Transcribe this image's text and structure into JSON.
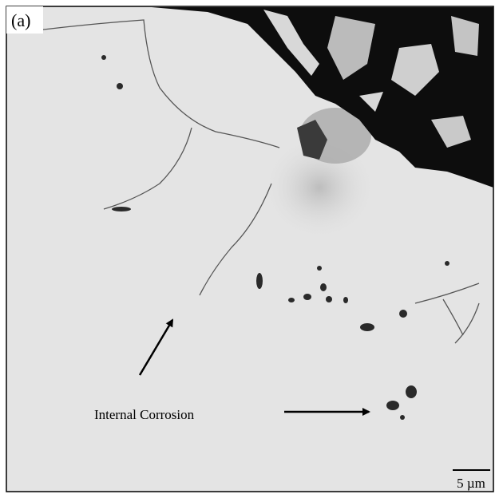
{
  "panel_label": "(a)",
  "annotation": "Internal Corrosion",
  "scale_bar": {
    "label": "5 µm"
  }
}
